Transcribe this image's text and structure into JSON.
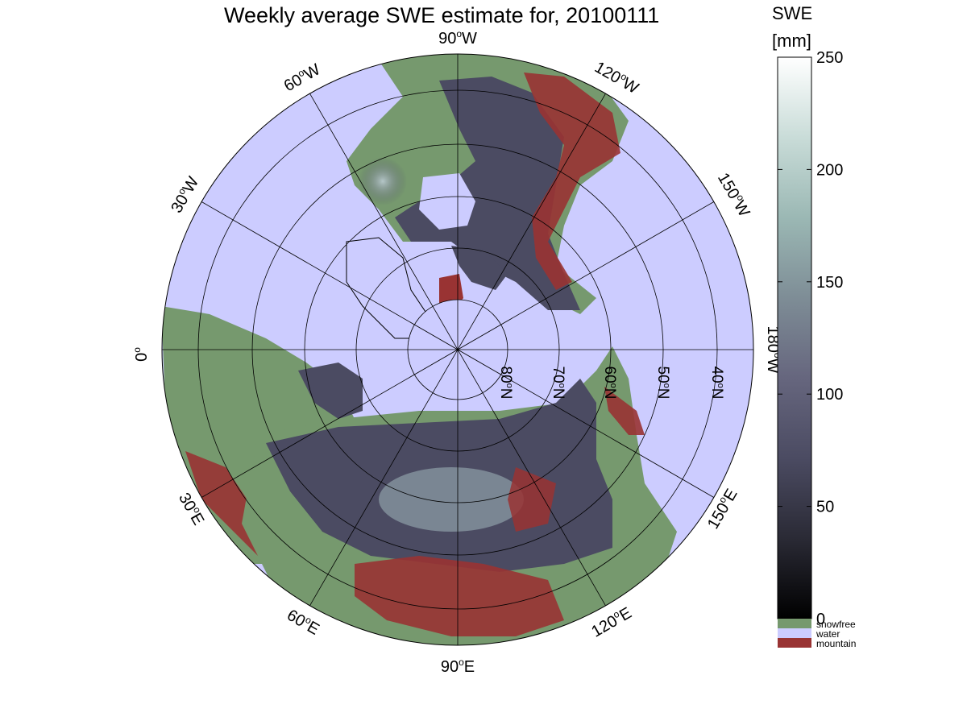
{
  "title": "Weekly average SWE estimate for, 20100111",
  "colorbar": {
    "title_line1": "SWE",
    "title_line2": "[mm]",
    "ticks": [
      "0",
      "50",
      "100",
      "150",
      "200",
      "250"
    ],
    "range": [
      0,
      250
    ],
    "gradient_colors": [
      "#000000",
      "#2a2a35",
      "#4b4b62",
      "#66667e",
      "#7e8d96",
      "#9bb8b4",
      "#c9dcd8",
      "#ffffff"
    ],
    "categories": [
      {
        "label": "snowfree",
        "color": "#76996e"
      },
      {
        "label": "water",
        "color": "#ccccff"
      },
      {
        "label": "mountain",
        "color": "#993333"
      }
    ]
  },
  "map": {
    "projection": "north polar stereographic",
    "ocean_color": "#ccccff",
    "longitude_labels": [
      {
        "text": "90°W",
        "base": "90",
        "sup": "o",
        "suffix": "W"
      },
      {
        "text": "120°W",
        "base": "120",
        "sup": "o",
        "suffix": "W"
      },
      {
        "text": "150°W",
        "base": "150",
        "sup": "o",
        "suffix": "W"
      },
      {
        "text": "180°W",
        "base": "180",
        "sup": "o",
        "suffix": "W"
      },
      {
        "text": "150°E",
        "base": "150",
        "sup": "o",
        "suffix": "E"
      },
      {
        "text": "120°E",
        "base": "120",
        "sup": "o",
        "suffix": "E"
      },
      {
        "text": "90°E",
        "base": "90",
        "sup": "o",
        "suffix": "E"
      },
      {
        "text": "60°E",
        "base": "60",
        "sup": "o",
        "suffix": "E"
      },
      {
        "text": "30°E",
        "base": "30",
        "sup": "o",
        "suffix": "E"
      },
      {
        "text": "0°",
        "base": "0",
        "sup": "o",
        "suffix": ""
      },
      {
        "text": "30°W",
        "base": "30",
        "sup": "o",
        "suffix": "W"
      },
      {
        "text": "60°W",
        "base": "60",
        "sup": "o",
        "suffix": "W"
      }
    ],
    "latitude_labels": [
      {
        "text": "80°N",
        "base": "80",
        "sup": "o",
        "suffix": "N"
      },
      {
        "text": "70°N",
        "base": "70",
        "sup": "o",
        "suffix": "N"
      },
      {
        "text": "60°N",
        "base": "60",
        "sup": "o",
        "suffix": "N"
      },
      {
        "text": "50°N",
        "base": "50",
        "sup": "o",
        "suffix": "N"
      },
      {
        "text": "40°N",
        "base": "40",
        "sup": "o",
        "suffix": "N"
      }
    ]
  }
}
